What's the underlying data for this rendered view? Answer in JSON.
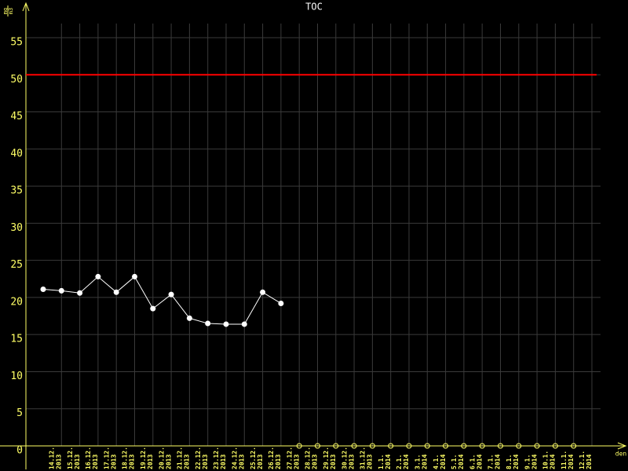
{
  "chart_data": {
    "type": "line",
    "title": "TOC",
    "y_unit_top": "mg",
    "y_unit_bottom": "m3",
    "xlabel": "den",
    "categories": [
      [
        "14.12.",
        "2013"
      ],
      [
        "15.12.",
        "2013"
      ],
      [
        "16.12.",
        "2013"
      ],
      [
        "17.12.",
        "2013"
      ],
      [
        "18.12.",
        "2013"
      ],
      [
        "19.12.",
        "2013"
      ],
      [
        "20.12.",
        "2013"
      ],
      [
        "21.12.",
        "2013"
      ],
      [
        "22.12.",
        "2013"
      ],
      [
        "23.12.",
        "2013"
      ],
      [
        "24.12.",
        "2013"
      ],
      [
        "25.12.",
        "2013"
      ],
      [
        "26.12.",
        "2013"
      ],
      [
        "27.12.",
        "2013"
      ],
      [
        "28.12.",
        "2013"
      ],
      [
        "29.12.",
        "2013"
      ],
      [
        "30.12.",
        "2013"
      ],
      [
        "31.12.",
        "2013"
      ],
      [
        "1.1.",
        "2014"
      ],
      [
        "2.1.",
        "2014"
      ],
      [
        "3.1.",
        "2014"
      ],
      [
        "4.1.",
        "2014"
      ],
      [
        "5.1.",
        "2014"
      ],
      [
        "6.1.",
        "2014"
      ],
      [
        "7.1.",
        "2014"
      ],
      [
        "8.1.",
        "2014"
      ],
      [
        "9.1.",
        "2014"
      ],
      [
        "10.1.",
        "2014"
      ],
      [
        "11.1.",
        "2014"
      ],
      [
        "12.1.",
        "2014"
      ]
    ],
    "values": [
      21.1,
      20.9,
      20.6,
      22.8,
      20.7,
      22.8,
      18.5,
      20.4,
      17.2,
      16.5,
      16.4,
      16.4,
      20.7,
      19.2,
      null,
      null,
      null,
      null,
      null,
      null,
      null,
      null,
      null,
      null,
      null,
      null,
      null,
      null,
      null,
      null
    ],
    "color": "#ffffff",
    "limit": 50,
    "limit_color": "#ff0000",
    "ylim": [
      0,
      55
    ],
    "yticks": [
      0,
      5,
      10,
      15,
      20,
      25,
      30,
      35,
      40,
      45,
      50,
      55
    ],
    "grid": true
  }
}
